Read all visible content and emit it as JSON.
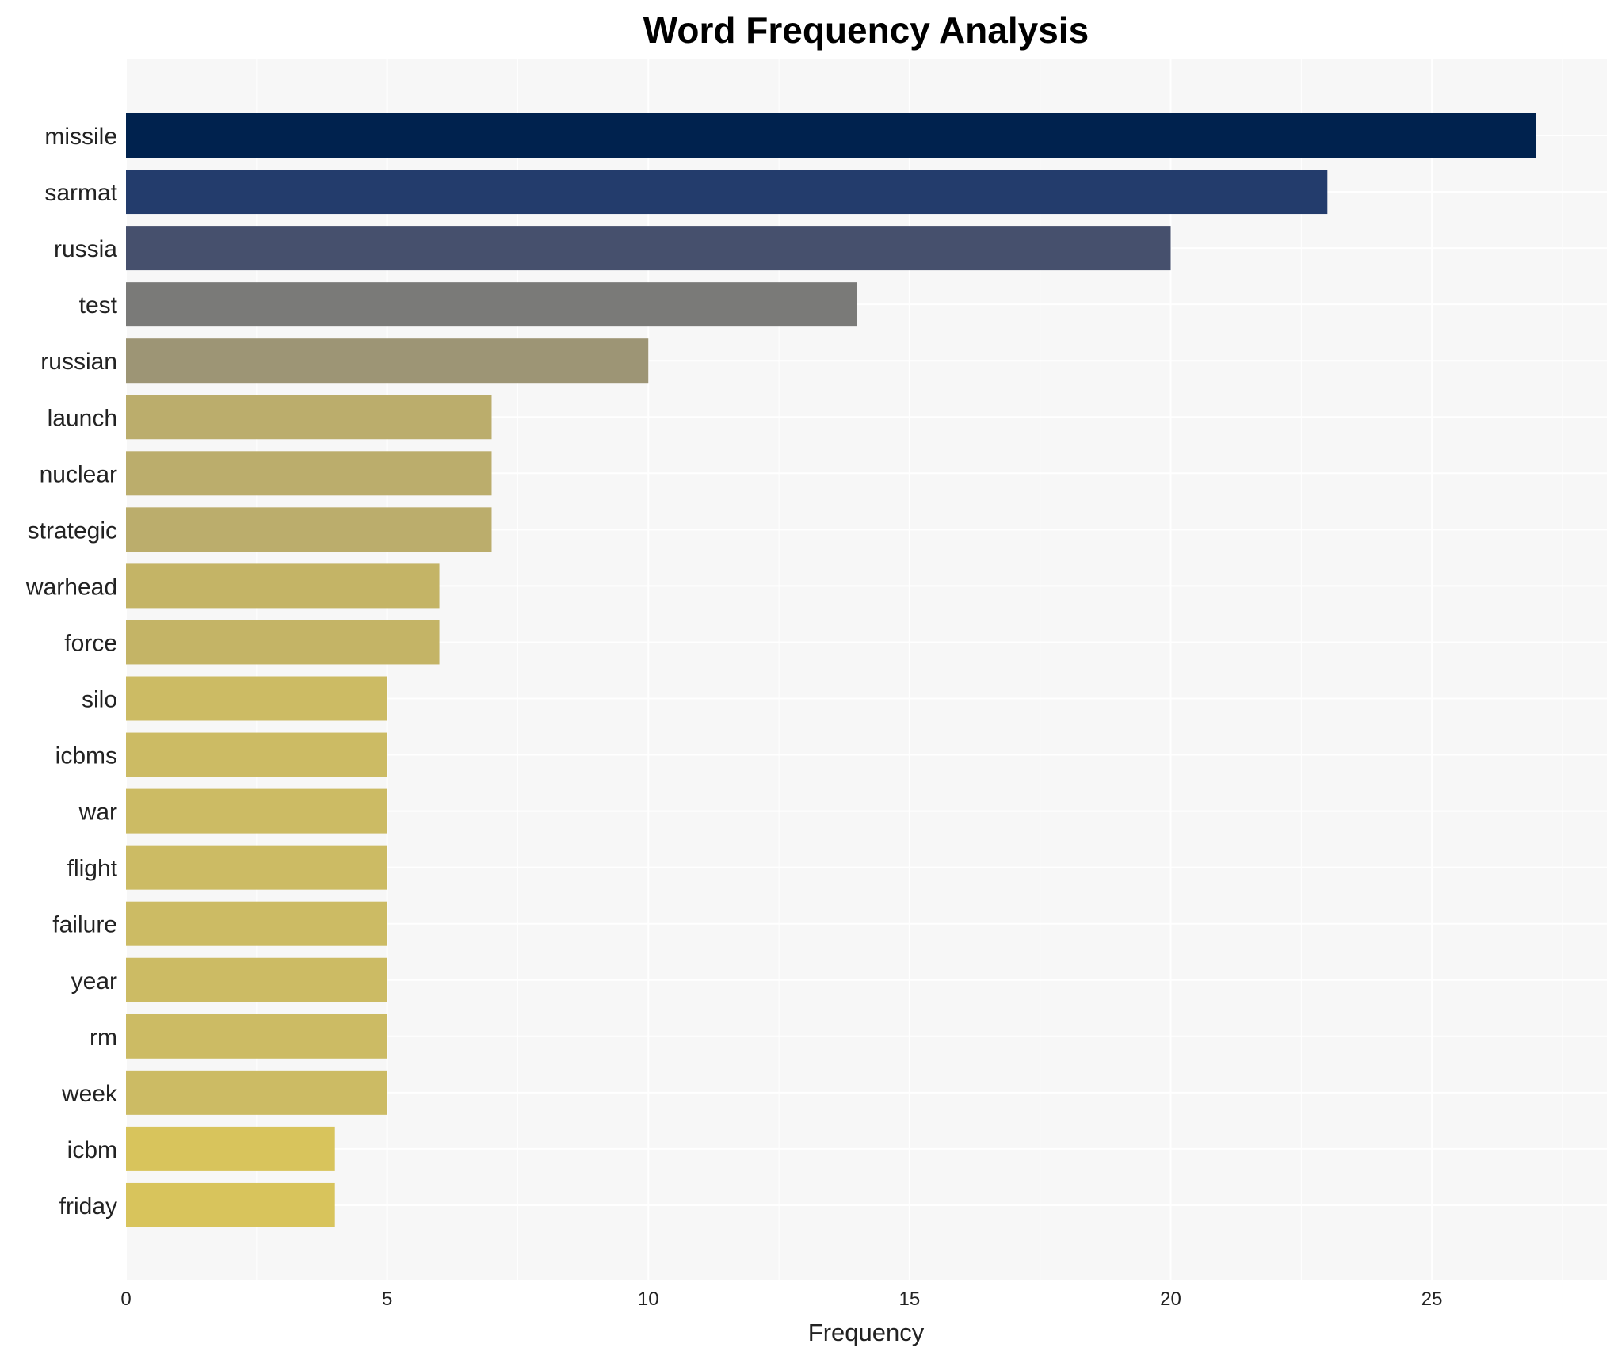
{
  "chart_data": {
    "type": "bar",
    "orientation": "horizontal",
    "title": "Word Frequency Analysis",
    "xlabel": "Frequency",
    "ylabel": "",
    "xlim": [
      0,
      28.35
    ],
    "xticks": [
      0,
      5,
      10,
      15,
      20,
      25
    ],
    "grid": true,
    "categories": [
      "missile",
      "sarmat",
      "russia",
      "test",
      "russian",
      "launch",
      "nuclear",
      "strategic",
      "warhead",
      "force",
      "silo",
      "icbms",
      "war",
      "flight",
      "failure",
      "year",
      "rm",
      "week",
      "icbm",
      "friday"
    ],
    "values": [
      27,
      23,
      20,
      14,
      10,
      7,
      7,
      7,
      6,
      6,
      5,
      5,
      5,
      5,
      5,
      5,
      5,
      5,
      4,
      4
    ],
    "colors": [
      "#00224e",
      "#233c6c",
      "#46506d",
      "#7a7a78",
      "#9d9575",
      "#bbad6c",
      "#bbad6c",
      "#bbad6c",
      "#c4b466",
      "#c4b466",
      "#ccbb64",
      "#ccbb64",
      "#ccbb64",
      "#ccbb64",
      "#ccbb64",
      "#ccbb64",
      "#ccbb64",
      "#ccbb64",
      "#d8c45c",
      "#d8c45c"
    ],
    "background": "#f7f7f7"
  }
}
